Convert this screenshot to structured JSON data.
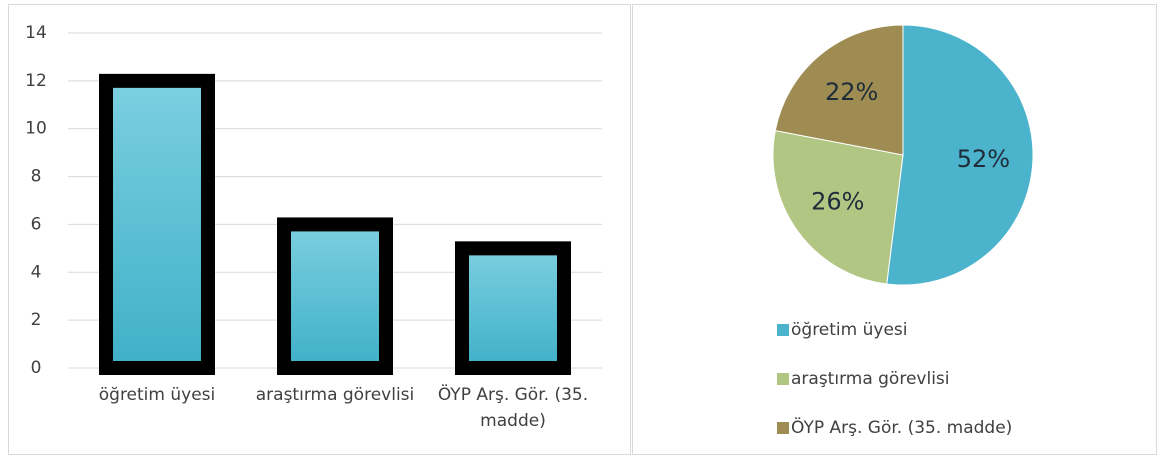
{
  "chart_data": [
    {
      "type": "bar",
      "categories": [
        "öğretim üyesi",
        "araştırma görevlisi",
        "ÖYP Arş. Gör. (35. madde)"
      ],
      "values": [
        12,
        6,
        5
      ],
      "color": "#4bb8cf",
      "ylim": [
        0,
        14
      ],
      "yticks": [
        0,
        2,
        4,
        6,
        8,
        10,
        12,
        14
      ],
      "grid": true
    },
    {
      "type": "pie",
      "categories": [
        "öğretim üyesi",
        "araştırma görevlisi",
        "ÖYP Arş. Gör. (35. madde)"
      ],
      "values": [
        52,
        26,
        22
      ],
      "value_labels": [
        "52%",
        "26%",
        "22%"
      ],
      "colors": [
        "#4bb3cb",
        "#b2c683",
        "#9e8c52"
      ],
      "legend": "bottom"
    }
  ]
}
